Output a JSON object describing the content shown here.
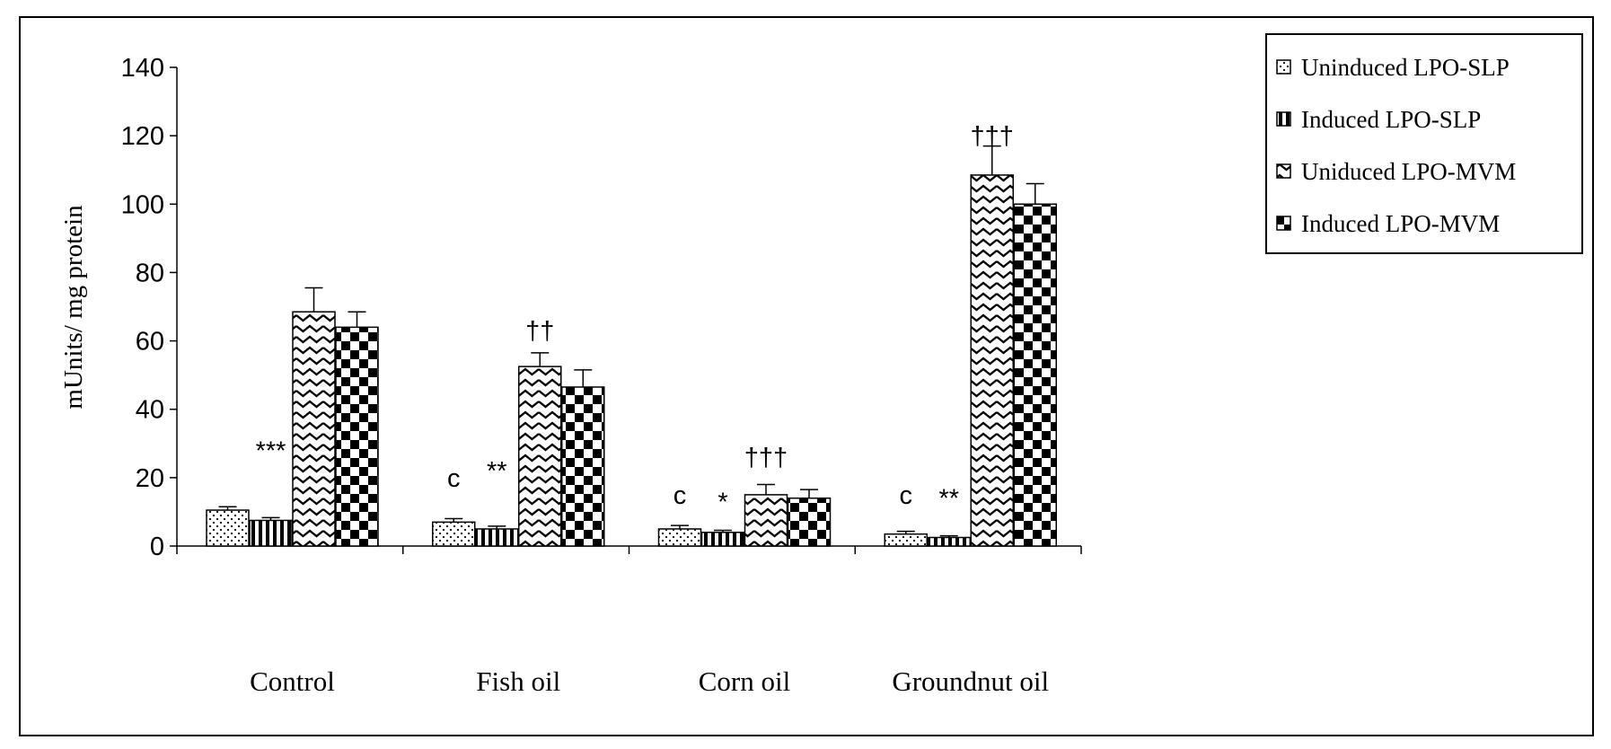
{
  "chart_data": {
    "type": "bar",
    "categories": [
      "Control",
      "Fish oil",
      "Corn oil",
      "Groundnut oil"
    ],
    "ylabel": "mUnits/ mg protein",
    "xlabel": "",
    "ylim": [
      0,
      140
    ],
    "yticks": [
      0,
      20,
      40,
      60,
      80,
      100,
      120,
      140
    ],
    "grid": false,
    "legend_position": "right",
    "series": [
      {
        "name": "Uninduced LPO-SLP",
        "pattern": "dots",
        "values": [
          10.5,
          7,
          5,
          3.5
        ],
        "errors": [
          1,
          1,
          1,
          0.8
        ]
      },
      {
        "name": "Induced LPO-SLP",
        "pattern": "vertical-stripes",
        "values": [
          7.5,
          5,
          4,
          2.5
        ],
        "errors": [
          0.8,
          0.8,
          0.6,
          0.5
        ]
      },
      {
        "name": "Uniduced LPO-MVM",
        "pattern": "zigzag",
        "values": [
          68.5,
          52.5,
          15,
          108.5
        ],
        "errors": [
          7,
          4,
          3,
          8.5
        ]
      },
      {
        "name": "Induced LPO-MVM",
        "pattern": "checker",
        "values": [
          64,
          46.5,
          14,
          100
        ],
        "errors": [
          4.5,
          5,
          2.5,
          6
        ]
      }
    ],
    "annotations": [
      {
        "text": "***",
        "category": 0,
        "series": 1,
        "y": 28
      },
      {
        "text": "c",
        "category": 1,
        "series": 0,
        "y": 20
      },
      {
        "text": "**",
        "category": 1,
        "series": 1,
        "y": 22
      },
      {
        "text": "††",
        "category": 1,
        "series": 2,
        "y": 63
      },
      {
        "text": "c",
        "category": 2,
        "series": 0,
        "y": 15
      },
      {
        "text": "*",
        "category": 2,
        "series": 1,
        "y": 13
      },
      {
        "text": "†††",
        "category": 2,
        "series": 2,
        "y": 26
      },
      {
        "text": "c",
        "category": 3,
        "series": 0,
        "y": 15
      },
      {
        "text": "**",
        "category": 3,
        "series": 1,
        "y": 14
      },
      {
        "text": "†††",
        "category": 3,
        "series": 2,
        "y": 120
      }
    ]
  }
}
